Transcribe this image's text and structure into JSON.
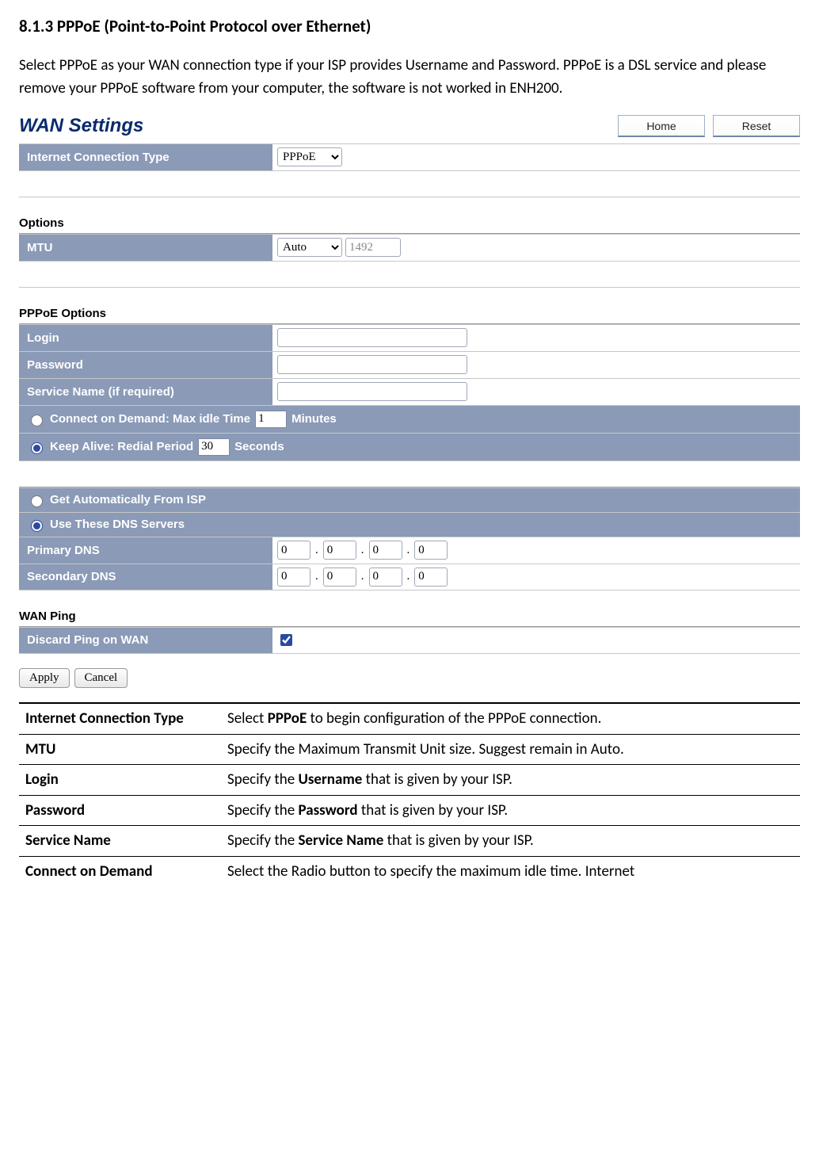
{
  "section": {
    "number": "8.1.3",
    "title": "PPPoE (Point-to-Point Protocol over Ethernet)",
    "intro": "Select PPPoE as your WAN connection type if your ISP provides Username and Password. PPPoE is a DSL service and please remove your PPPoE software from your computer, the software is not worked in ENH200."
  },
  "panel": {
    "title": "WAN Settings",
    "buttons": {
      "home": "Home",
      "reset": "Reset"
    },
    "rows": {
      "conn_type_label": "Internet Connection Type",
      "conn_type_value": "PPPoE",
      "options_heading": "Options",
      "mtu_label": "MTU",
      "mtu_mode": "Auto",
      "mtu_value": "1492",
      "pppoe_heading": "PPPoE Options",
      "login_label": "Login",
      "password_label": "Password",
      "service_label": "Service Name (if required)",
      "connect_on_demand_pre": "Connect on Demand: Max idle Time",
      "connect_on_demand_val": "1",
      "connect_on_demand_post": "Minutes",
      "keep_alive_pre": "Keep Alive: Redial Period",
      "keep_alive_val": "30",
      "keep_alive_post": "Seconds",
      "dns_auto": "Get Automatically From ISP",
      "dns_manual": "Use These DNS Servers",
      "primary_dns_label": "Primary DNS",
      "secondary_dns_label": "Secondary DNS",
      "dns_octet": "0",
      "wan_ping_heading": "WAN Ping",
      "discard_ping_label": "Discard Ping on WAN"
    },
    "footer": {
      "apply": "Apply",
      "cancel": "Cancel"
    }
  },
  "desc": {
    "rows": [
      {
        "term": "Internet Connection Type",
        "text_pre": "Select ",
        "bold": "PPPoE",
        "text_post": " to begin configuration of the PPPoE connection."
      },
      {
        "term": "MTU",
        "text_pre": "Specify the Maximum Transmit Unit size. Suggest remain in Auto.",
        "bold": "",
        "text_post": ""
      },
      {
        "term": "Login",
        "text_pre": "Specify the ",
        "bold": "Username",
        "text_post": " that is given by your ISP."
      },
      {
        "term": "Password",
        "text_pre": "Specify the ",
        "bold": "Password",
        "text_post": " that is given by your ISP."
      },
      {
        "term": "Service Name",
        "text_pre": "Specify the ",
        "bold": "Service Name",
        "text_post": " that is given by your ISP."
      },
      {
        "term": "Connect on Demand",
        "text_pre": "Select the Radio button to specify the maximum idle time. Internet",
        "bold": "",
        "text_post": ""
      }
    ]
  },
  "colors": {
    "header_blue": "#0a2a6c",
    "row_blue": "#8a9ab7",
    "border_gray": "#c7c7c7"
  }
}
